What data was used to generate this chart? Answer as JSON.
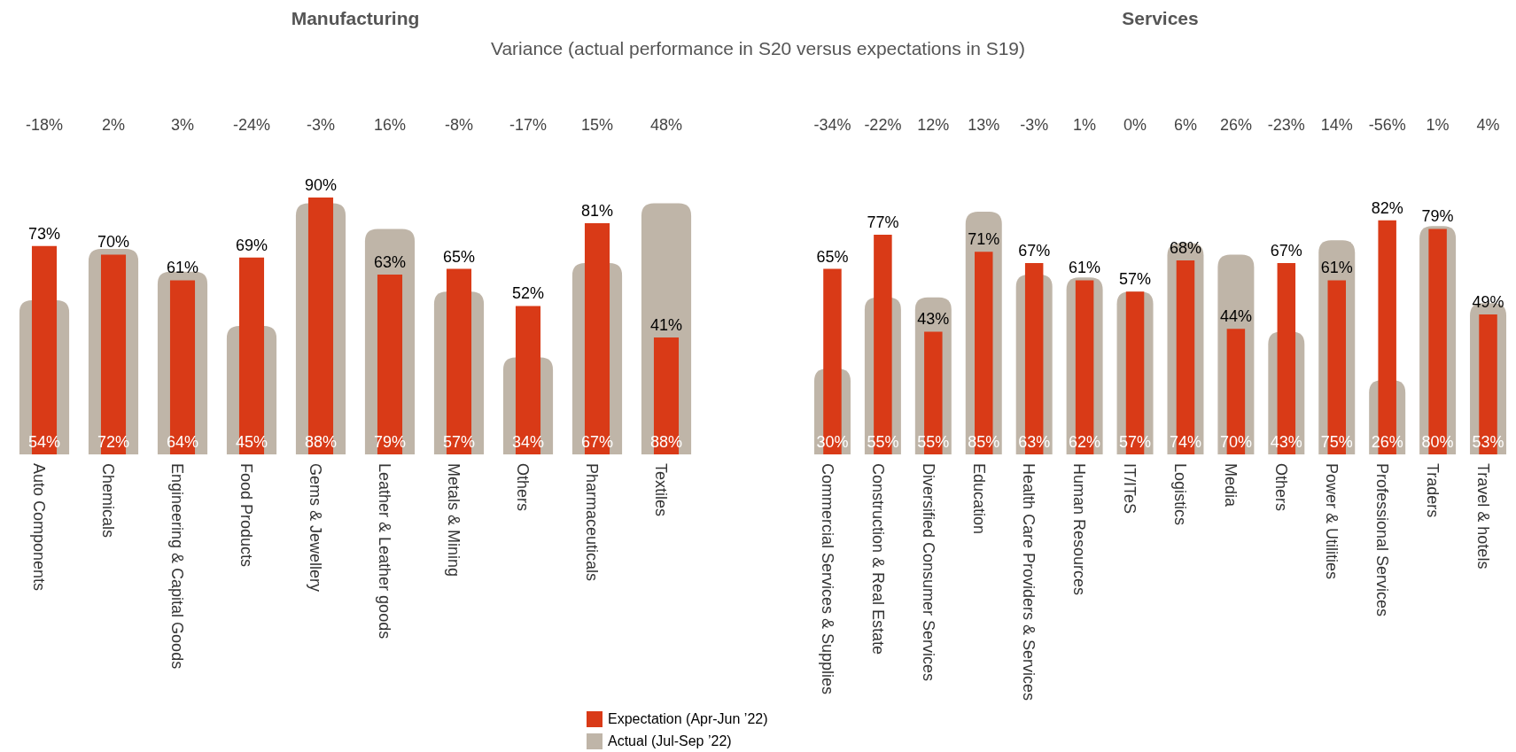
{
  "chart_data": [
    {
      "type": "bar",
      "title": "Manufacturing",
      "subtitle": "Variance (actual performance in S20 versus expectations in S19)",
      "categories": [
        "Auto Components",
        "Chemicals",
        "Engineering & Capital Goods",
        "Food Products",
        "Gems & Jewellery",
        "Leather & Leather goods",
        "Metals & Mining",
        "Others",
        "Pharmaceuticals",
        "Textiles"
      ],
      "series": [
        {
          "name": "Actual (Jul-Sep ’22)",
          "color": "#bfb5a8",
          "values": [
            54,
            72,
            64,
            45,
            88,
            79,
            57,
            34,
            67,
            88
          ],
          "value_labels": [
            "54%",
            "72%",
            "64%",
            "45%",
            "88%",
            "79%",
            "57%",
            "34%",
            "67%",
            "88%"
          ]
        },
        {
          "name": "Expectation (Apr-Jun ’22)",
          "color": "#d93a17",
          "values": [
            73,
            70,
            61,
            69,
            90,
            63,
            65,
            52,
            81,
            41
          ],
          "value_labels": [
            "73%",
            "70%",
            "61%",
            "69%",
            "90%",
            "63%",
            "65%",
            "52%",
            "81%",
            "41%"
          ]
        }
      ],
      "annotations": [
        "-18%",
        "2%",
        "3%",
        "-24%",
        "-3%",
        "16%",
        "-8%",
        "-17%",
        "15%",
        "48%"
      ],
      "legend": "bottom right"
    },
    {
      "type": "bar",
      "title": "Services",
      "categories": [
        "Commercial Services & Supplies",
        "Construction & Real Estate",
        "Diversified Consumer Services",
        "Education",
        "Health Care Providers & Services",
        "Human Resources",
        "IT/ITeS",
        "Logistics",
        "Media",
        "Others",
        "Power & Utilities",
        "Professional Services",
        "Traders",
        "Travel & hotels"
      ],
      "series": [
        {
          "color": "#bfb5a8",
          "values": [
            30,
            55,
            55,
            85,
            63,
            62,
            57,
            74,
            70,
            43,
            75,
            26,
            80,
            53
          ],
          "value_labels": [
            "30%",
            "55%",
            "55%",
            "85%",
            "63%",
            "62%",
            "57%",
            "74%",
            "70%",
            "43%",
            "75%",
            "26%",
            "80%",
            "53%"
          ]
        },
        {
          "color": "#d93a17",
          "values": [
            65,
            77,
            43,
            71,
            67,
            61,
            57,
            68,
            44,
            67,
            61,
            82,
            79,
            49
          ],
          "value_labels": [
            "65%",
            "77%",
            "43%",
            "71%",
            "67%",
            "61%",
            "57%",
            "68%",
            "44%",
            "67%",
            "61%",
            "82%",
            "79%",
            "49%"
          ]
        }
      ],
      "annotations": [
        "-34%",
        "-22%",
        "12%",
        "13%",
        "-3%",
        "1%",
        "0%",
        "6%",
        "26%",
        "-23%",
        "14%",
        "-56%",
        "1%",
        "4%"
      ],
      "legend": false
    }
  ]
}
